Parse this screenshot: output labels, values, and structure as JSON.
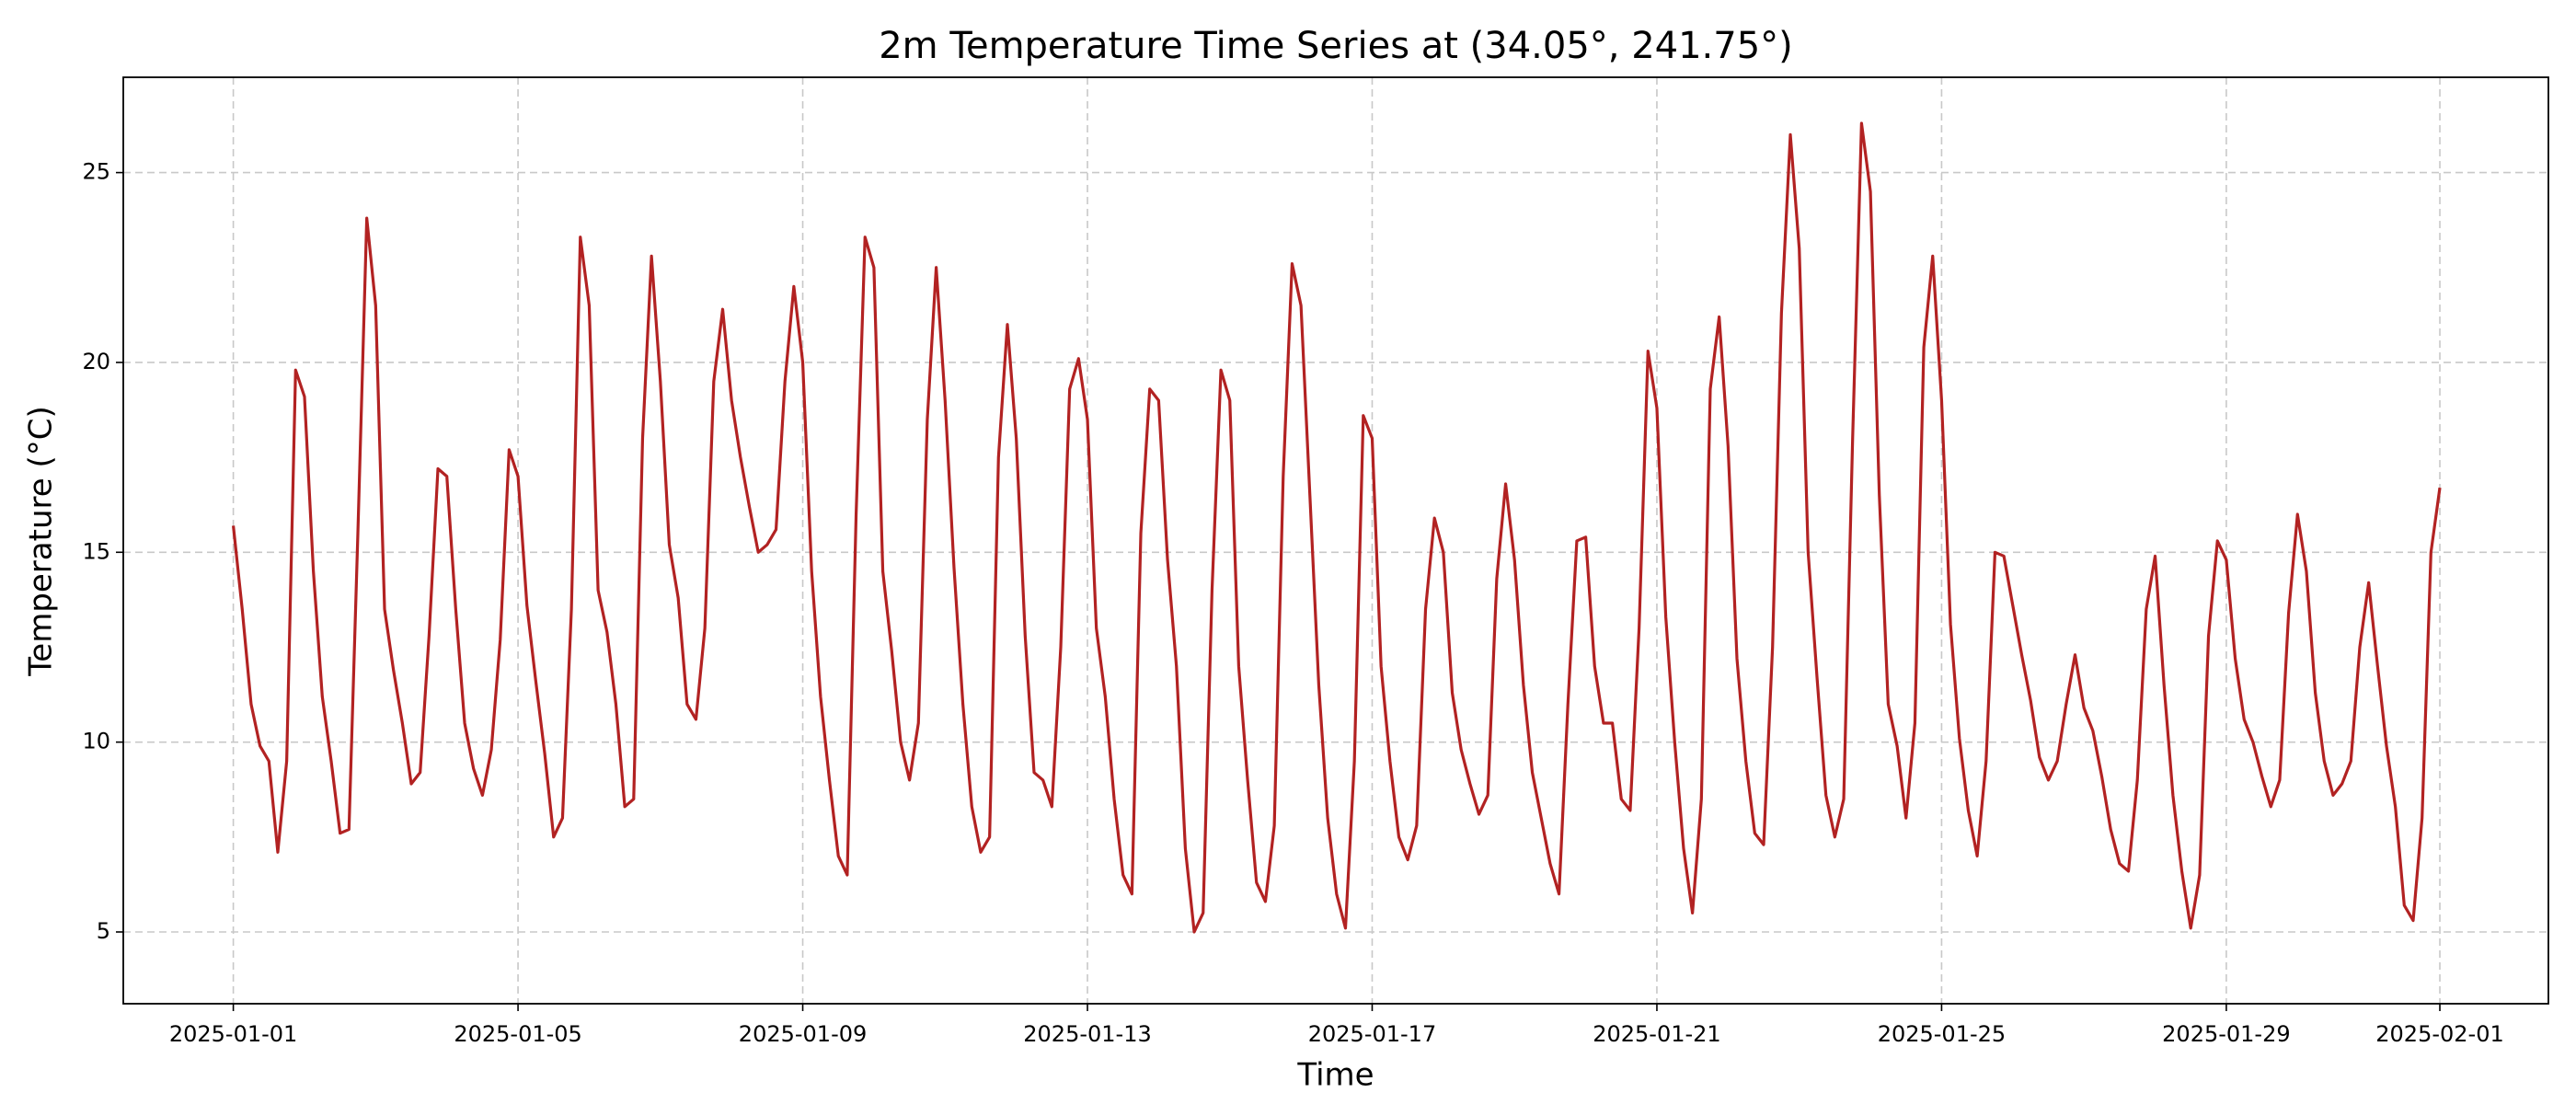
{
  "chart_data": {
    "type": "line",
    "title": "2m Temperature Time Series at (34.05°, 241.75°)",
    "x_label": "Time",
    "y_label": "Temperature (°C)",
    "color": "#b22222",
    "grid": true,
    "xlim": [
      "2024-12-30 10:54",
      "2025-02-02 12:36"
    ],
    "xticks": [
      "2025-01-01",
      "2025-01-05",
      "2025-01-09",
      "2025-01-13",
      "2025-01-17",
      "2025-01-21",
      "2025-01-25",
      "2025-01-29",
      "2025-02-01"
    ],
    "ylim": [
      3.11,
      27.51
    ],
    "yticks": [
      5,
      10,
      15,
      20,
      25
    ],
    "x": [
      "2025-01-01 00:00",
      "2025-01-01 03:00",
      "2025-01-01 06:00",
      "2025-01-01 09:00",
      "2025-01-01 12:00",
      "2025-01-01 15:00",
      "2025-01-01 18:00",
      "2025-01-01 21:00",
      "2025-01-02 00:00",
      "2025-01-02 03:00",
      "2025-01-02 06:00",
      "2025-01-02 09:00",
      "2025-01-02 12:00",
      "2025-01-02 15:00",
      "2025-01-02 18:00",
      "2025-01-02 21:00",
      "2025-01-03 00:00",
      "2025-01-03 03:00",
      "2025-01-03 06:00",
      "2025-01-03 09:00",
      "2025-01-03 12:00",
      "2025-01-03 15:00",
      "2025-01-03 18:00",
      "2025-01-03 21:00",
      "2025-01-04 00:00",
      "2025-01-04 03:00",
      "2025-01-04 06:00",
      "2025-01-04 09:00",
      "2025-01-04 12:00",
      "2025-01-04 15:00",
      "2025-01-04 18:00",
      "2025-01-04 21:00",
      "2025-01-05 00:00",
      "2025-01-05 03:00",
      "2025-01-05 06:00",
      "2025-01-05 09:00",
      "2025-01-05 12:00",
      "2025-01-05 15:00",
      "2025-01-05 18:00",
      "2025-01-05 21:00",
      "2025-01-06 00:00",
      "2025-01-06 03:00",
      "2025-01-06 06:00",
      "2025-01-06 09:00",
      "2025-01-06 12:00",
      "2025-01-06 15:00",
      "2025-01-06 18:00",
      "2025-01-06 21:00",
      "2025-01-07 00:00",
      "2025-01-07 03:00",
      "2025-01-07 06:00",
      "2025-01-07 09:00",
      "2025-01-07 12:00",
      "2025-01-07 15:00",
      "2025-01-07 18:00",
      "2025-01-07 21:00",
      "2025-01-08 00:00",
      "2025-01-08 03:00",
      "2025-01-08 06:00",
      "2025-01-08 09:00",
      "2025-01-08 12:00",
      "2025-01-08 15:00",
      "2025-01-08 18:00",
      "2025-01-08 21:00",
      "2025-01-09 00:00",
      "2025-01-09 03:00",
      "2025-01-09 06:00",
      "2025-01-09 09:00",
      "2025-01-09 12:00",
      "2025-01-09 15:00",
      "2025-01-09 18:00",
      "2025-01-09 21:00",
      "2025-01-10 00:00",
      "2025-01-10 03:00",
      "2025-01-10 06:00",
      "2025-01-10 09:00",
      "2025-01-10 12:00",
      "2025-01-10 15:00",
      "2025-01-10 18:00",
      "2025-01-10 21:00",
      "2025-01-11 00:00",
      "2025-01-11 03:00",
      "2025-01-11 06:00",
      "2025-01-11 09:00",
      "2025-01-11 12:00",
      "2025-01-11 15:00",
      "2025-01-11 18:00",
      "2025-01-11 21:00",
      "2025-01-12 00:00",
      "2025-01-12 03:00",
      "2025-01-12 06:00",
      "2025-01-12 09:00",
      "2025-01-12 12:00",
      "2025-01-12 15:00",
      "2025-01-12 18:00",
      "2025-01-12 21:00",
      "2025-01-13 00:00",
      "2025-01-13 03:00",
      "2025-01-13 06:00",
      "2025-01-13 09:00",
      "2025-01-13 12:00",
      "2025-01-13 15:00",
      "2025-01-13 18:00",
      "2025-01-13 21:00",
      "2025-01-14 00:00",
      "2025-01-14 03:00",
      "2025-01-14 06:00",
      "2025-01-14 09:00",
      "2025-01-14 12:00",
      "2025-01-14 15:00",
      "2025-01-14 18:00",
      "2025-01-14 21:00",
      "2025-01-15 00:00",
      "2025-01-15 03:00",
      "2025-01-15 06:00",
      "2025-01-15 09:00",
      "2025-01-15 12:00",
      "2025-01-15 15:00",
      "2025-01-15 18:00",
      "2025-01-15 21:00",
      "2025-01-16 00:00",
      "2025-01-16 03:00",
      "2025-01-16 06:00",
      "2025-01-16 09:00",
      "2025-01-16 12:00",
      "2025-01-16 15:00",
      "2025-01-16 18:00",
      "2025-01-16 21:00",
      "2025-01-17 00:00",
      "2025-01-17 03:00",
      "2025-01-17 06:00",
      "2025-01-17 09:00",
      "2025-01-17 12:00",
      "2025-01-17 15:00",
      "2025-01-17 18:00",
      "2025-01-17 21:00",
      "2025-01-18 00:00",
      "2025-01-18 03:00",
      "2025-01-18 06:00",
      "2025-01-18 09:00",
      "2025-01-18 12:00",
      "2025-01-18 15:00",
      "2025-01-18 18:00",
      "2025-01-18 21:00",
      "2025-01-19 00:00",
      "2025-01-19 03:00",
      "2025-01-19 06:00",
      "2025-01-19 09:00",
      "2025-01-19 12:00",
      "2025-01-19 15:00",
      "2025-01-19 18:00",
      "2025-01-19 21:00",
      "2025-01-20 00:00",
      "2025-01-20 03:00",
      "2025-01-20 06:00",
      "2025-01-20 09:00",
      "2025-01-20 12:00",
      "2025-01-20 15:00",
      "2025-01-20 18:00",
      "2025-01-20 21:00",
      "2025-01-21 00:00",
      "2025-01-21 03:00",
      "2025-01-21 06:00",
      "2025-01-21 09:00",
      "2025-01-21 12:00",
      "2025-01-21 15:00",
      "2025-01-21 18:00",
      "2025-01-21 21:00",
      "2025-01-22 00:00",
      "2025-01-22 03:00",
      "2025-01-22 06:00",
      "2025-01-22 09:00",
      "2025-01-22 12:00",
      "2025-01-22 15:00",
      "2025-01-22 18:00",
      "2025-01-22 21:00",
      "2025-01-23 00:00",
      "2025-01-23 03:00",
      "2025-01-23 06:00",
      "2025-01-23 09:00",
      "2025-01-23 12:00",
      "2025-01-23 15:00",
      "2025-01-23 18:00",
      "2025-01-23 21:00",
      "2025-01-24 00:00",
      "2025-01-24 03:00",
      "2025-01-24 06:00",
      "2025-01-24 09:00",
      "2025-01-24 12:00",
      "2025-01-24 15:00",
      "2025-01-24 18:00",
      "2025-01-24 21:00",
      "2025-01-25 00:00",
      "2025-01-25 03:00",
      "2025-01-25 06:00",
      "2025-01-25 09:00",
      "2025-01-25 12:00",
      "2025-01-25 15:00",
      "2025-01-25 18:00",
      "2025-01-25 21:00",
      "2025-01-26 00:00",
      "2025-01-26 03:00",
      "2025-01-26 06:00",
      "2025-01-26 09:00",
      "2025-01-26 12:00",
      "2025-01-26 15:00",
      "2025-01-26 18:00",
      "2025-01-26 21:00",
      "2025-01-27 00:00",
      "2025-01-27 03:00",
      "2025-01-27 06:00",
      "2025-01-27 09:00",
      "2025-01-27 12:00",
      "2025-01-27 15:00",
      "2025-01-27 18:00",
      "2025-01-27 21:00",
      "2025-01-28 00:00",
      "2025-01-28 03:00",
      "2025-01-28 06:00",
      "2025-01-28 09:00",
      "2025-01-28 12:00",
      "2025-01-28 15:00",
      "2025-01-28 18:00",
      "2025-01-28 21:00",
      "2025-01-29 00:00",
      "2025-01-29 03:00",
      "2025-01-29 06:00",
      "2025-01-29 09:00",
      "2025-01-29 12:00",
      "2025-01-29 15:00",
      "2025-01-29 18:00",
      "2025-01-29 21:00",
      "2025-01-30 00:00",
      "2025-01-30 03:00",
      "2025-01-30 06:00",
      "2025-01-30 09:00",
      "2025-01-30 12:00",
      "2025-01-30 15:00",
      "2025-01-30 18:00",
      "2025-01-30 21:00",
      "2025-01-31 00:00",
      "2025-01-31 03:00",
      "2025-01-31 06:00",
      "2025-01-31 09:00",
      "2025-01-31 12:00",
      "2025-01-31 15:00",
      "2025-01-31 18:00",
      "2025-01-31 21:00",
      "2025-02-01 00:00"
    ],
    "values": [
      15.7,
      13.5,
      11,
      9.9,
      9.5,
      7.1,
      9.5,
      19.8,
      19.1,
      14.5,
      11.2,
      9.5,
      7.6,
      7.7,
      15.5,
      23.8,
      21.5,
      13.5,
      11.9,
      10.5,
      8.9,
      9.2,
      12.8,
      17.2,
      17,
      13.5,
      10.5,
      9.3,
      8.6,
      9.8,
      12.7,
      17.7,
      17,
      13.6,
      11.6,
      9.7,
      7.5,
      8,
      13.5,
      23.3,
      21.5,
      14,
      12.9,
      11,
      8.3,
      8.5,
      18,
      22.8,
      19.5,
      15.2,
      13.8,
      11,
      10.6,
      13,
      19.5,
      21.4,
      19,
      17.5,
      16.2,
      15,
      15.2,
      15.6,
      19.5,
      22,
      20,
      14.5,
      11.2,
      9,
      7,
      6.5,
      16,
      23.3,
      22.5,
      14.5,
      12.4,
      10,
      9,
      10.5,
      18.5,
      22.5,
      19,
      14.6,
      11,
      8.3,
      7.1,
      7.5,
      17.5,
      21,
      18,
      12.8,
      9.2,
      9,
      8.3,
      12.5,
      19.3,
      20.1,
      18.5,
      13,
      11.2,
      8.5,
      6.5,
      6,
      15.5,
      19.3,
      19,
      14.8,
      12,
      7.2,
      5,
      5.5,
      14,
      19.8,
      19,
      12,
      9,
      6.3,
      5.8,
      7.8,
      17,
      22.6,
      21.5,
      16.5,
      11.5,
      8,
      6,
      5.1,
      9.5,
      18.6,
      18,
      12,
      9.5,
      7.5,
      6.9,
      7.8,
      13.5,
      15.9,
      15,
      11.3,
      9.8,
      8.9,
      8.1,
      8.6,
      14.3,
      16.8,
      14.8,
      11.5,
      9.2,
      8,
      6.8,
      6,
      11,
      15.3,
      15.4,
      12,
      10.5,
      10.5,
      8.5,
      8.2,
      13,
      20.3,
      18.8,
      13.3,
      10,
      7.2,
      5.5,
      8.5,
      19.3,
      21.2,
      17.8,
      12.2,
      9.5,
      7.6,
      7.3,
      12.5,
      21.3,
      26,
      23,
      15,
      11.7,
      8.6,
      7.5,
      8.5,
      18,
      26.3,
      24.5,
      16.5,
      11,
      9.9,
      8,
      10.5,
      20.4,
      22.8,
      19,
      13.1,
      10.1,
      8.2,
      7,
      9.5,
      15,
      14.9,
      13.6,
      12.3,
      11.1,
      9.6,
      9,
      9.5,
      11,
      12.3,
      10.9,
      10.3,
      9.1,
      7.7,
      6.8,
      6.6,
      9,
      13.5,
      14.9,
      11.5,
      8.6,
      6.6,
      5.1,
      6.5,
      12.8,
      15.3,
      14.8,
      12.2,
      10.6,
      10,
      9.1,
      8.3,
      9,
      13.4,
      16,
      14.5,
      11.3,
      9.5,
      8.6,
      8.9,
      9.5,
      12.5,
      14.2,
      12,
      9.9,
      8.3,
      5.7,
      5.3,
      8,
      15,
      16.7
    ]
  }
}
